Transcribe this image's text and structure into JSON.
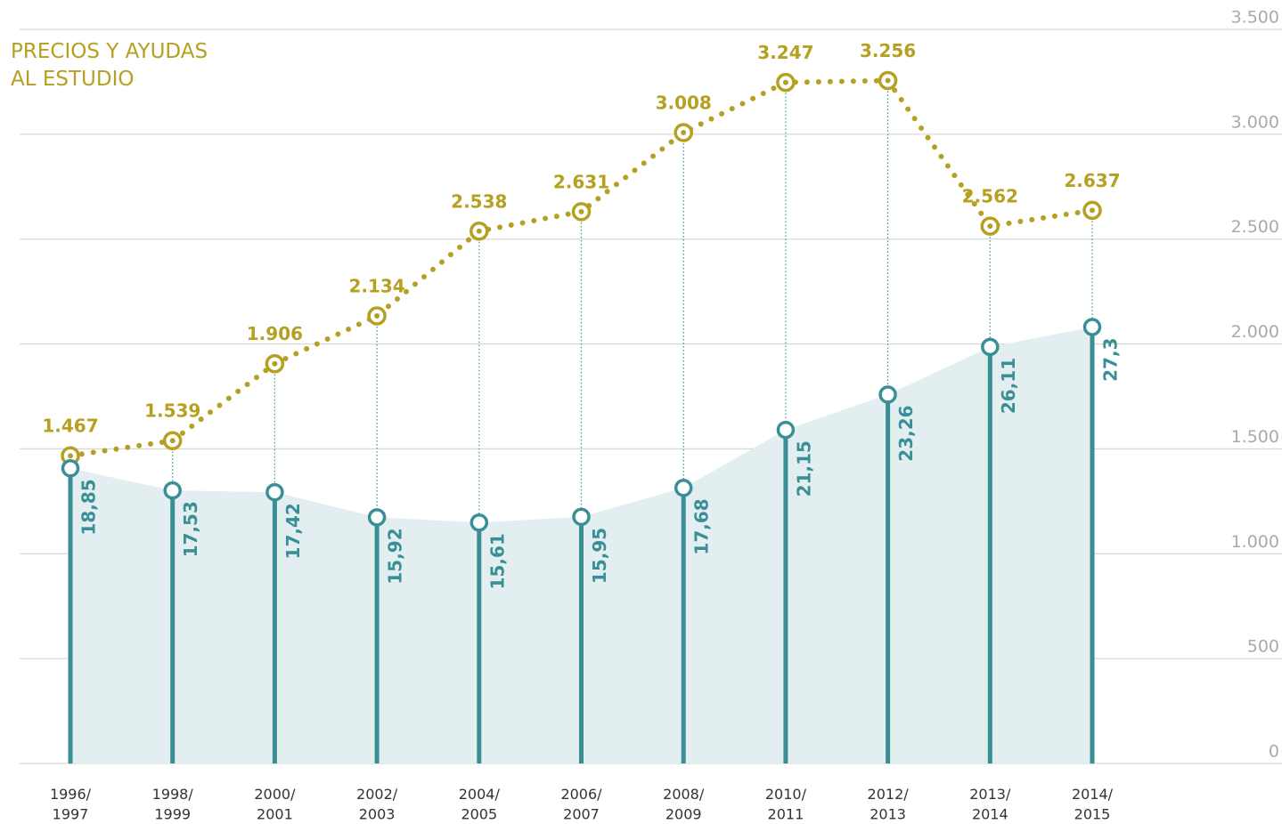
{
  "chart_data": {
    "type": "line",
    "title": "PRECIOS Y AYUDAS\nAL ESTUDIO",
    "categories": [
      "1996/\n1997",
      "1998/\n1999",
      "2000/\n2001",
      "2002/\n2003",
      "2004/\n2005",
      "2006/\n2007",
      "2008/\n2009",
      "2010/\n2011",
      "2012/\n2013",
      "2013/\n2014",
      "2014/\n2015"
    ],
    "series": [
      {
        "color": "#b5a022",
        "values": [
          1467,
          1539,
          1906,
          2134,
          2538,
          2631,
          3008,
          3247,
          3256,
          2562,
          2637
        ],
        "value_labels": [
          "1.467",
          "1.539",
          "1.906",
          "2.134",
          "2.538",
          "2.631",
          "3.008",
          "3.247",
          "3.256",
          "2.562",
          "2.637"
        ]
      },
      {
        "color": "#3a8f96",
        "axis": "y2",
        "values": [
          18.85,
          17.53,
          17.42,
          15.92,
          15.61,
          15.95,
          17.68,
          21.15,
          23.26,
          26.11,
          27.3
        ],
        "value_labels": [
          "18,85",
          "17,53",
          "17,42",
          "15,92",
          "15,61",
          "15,95",
          "17,68",
          "21,15",
          "23,26",
          "26,11",
          "27,3"
        ]
      }
    ],
    "ylim": [
      0,
      3500
    ],
    "yticks": [
      0,
      500,
      {
        "value": 1000,
        "label": "1.000"
      },
      {
        "value": 1500,
        "label": "1.500"
      },
      {
        "value": 2000,
        "label": "2.000"
      },
      {
        "value": 2500,
        "label": "2.500"
      },
      {
        "value": 3000,
        "label": "3.000"
      },
      {
        "value": 3500,
        "label": "3.500"
      }
    ],
    "y2lim": [
      1.2,
      45.1
    ],
    "grid": true
  }
}
